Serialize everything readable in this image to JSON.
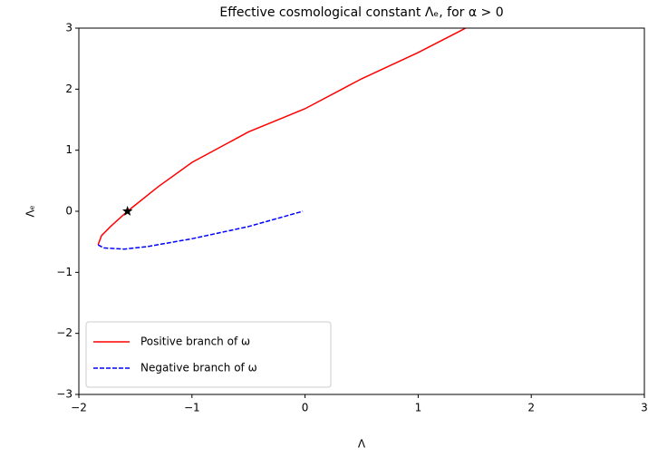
{
  "chart_data": {
    "type": "line",
    "title": "Effective cosmological constant Λₑ, for α > 0",
    "xlabel": "Λ",
    "ylabel": "Λₑ",
    "xlim": [
      -2,
      3
    ],
    "ylim": [
      -3,
      3
    ],
    "xticks": [
      {
        "value": -2,
        "label": "−2"
      },
      {
        "value": -1,
        "label": "−1"
      },
      0,
      1,
      2,
      3
    ],
    "yticks": [
      {
        "value": -3,
        "label": "−3"
      },
      {
        "value": -2,
        "label": "−2"
      },
      {
        "value": -1,
        "label": "−1"
      },
      0,
      1,
      2,
      3
    ],
    "grid": false,
    "legend": "lower left",
    "series": [
      {
        "name": "Positive branch of ω",
        "color": "#ff0000",
        "dash": "solid",
        "x": [
          -1.83,
          -1.8,
          -1.72,
          -1.57,
          -1.3,
          -1.0,
          -0.5,
          0,
          0.5,
          1.0,
          1.42
        ],
        "values": [
          -0.55,
          -0.4,
          -0.25,
          0,
          0.4,
          0.8,
          1.3,
          1.68,
          2.17,
          2.6,
          3
        ]
      },
      {
        "name": "Negative branch of ω",
        "color": "#0000ff",
        "dash": "dashed",
        "x": [
          -1.83,
          -1.78,
          -1.6,
          -1.4,
          -1.0,
          -0.5,
          -0.02
        ],
        "values": [
          -0.55,
          -0.6,
          -0.62,
          -0.58,
          -0.45,
          -0.25,
          0
        ]
      }
    ],
    "markers": [
      {
        "x": -1.57,
        "y": 0,
        "color": "#000000",
        "shape": "star"
      }
    ]
  }
}
